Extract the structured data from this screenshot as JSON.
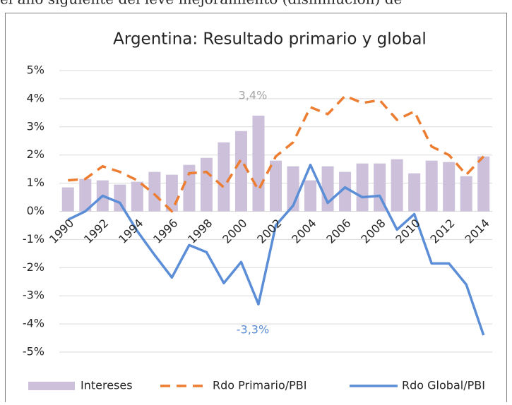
{
  "caption_above": "el año siguiente del leve mejoramiento (disminución) de",
  "chart_data": {
    "type": "bar_line",
    "title": "Argentina: Resultado primario y global",
    "categories": [
      "1990",
      null,
      "1992",
      null,
      "1994",
      null,
      "1996",
      null,
      "1998",
      null,
      "2000",
      null,
      "2002",
      null,
      "2004",
      null,
      "2006",
      null,
      "2008",
      null,
      "2010",
      null,
      "2012",
      null,
      "2014"
    ],
    "series": [
      {
        "name": "Intereses",
        "kind": "bar",
        "color": "#ccc0da",
        "values": [
          0.85,
          1.15,
          1.1,
          0.95,
          1.05,
          1.4,
          1.3,
          1.65,
          1.9,
          2.45,
          2.85,
          3.4,
          1.8,
          1.6,
          1.1,
          1.6,
          1.4,
          1.7,
          1.7,
          1.85,
          1.35,
          1.8,
          1.75,
          1.25,
          1.95
        ],
        "value_labels": [
          null,
          null,
          null,
          null,
          null,
          null,
          null,
          null,
          null,
          null,
          null,
          "3,4%",
          null,
          null,
          null,
          null,
          null,
          null,
          null,
          null,
          null,
          null,
          null,
          null,
          null
        ],
        "label_color": "#a6a6a6"
      },
      {
        "name": "Rdo Primario/PBI",
        "kind": "dashed-line",
        "color": "#ed7d31",
        "values": [
          1.1,
          1.15,
          1.6,
          1.4,
          1.1,
          0.6,
          0.0,
          1.35,
          1.4,
          0.85,
          1.85,
          0.75,
          1.95,
          2.45,
          3.7,
          3.45,
          4.1,
          3.85,
          3.95,
          3.25,
          3.55,
          2.3,
          2.0,
          1.3,
          1.95
        ]
      },
      {
        "name": "Rdo Global/PBI",
        "kind": "line",
        "color": "#5b8ed6",
        "values": [
          -0.3,
          0.0,
          0.55,
          0.3,
          -0.7,
          -1.55,
          -2.35,
          -1.2,
          -1.45,
          -2.55,
          -1.8,
          -3.3,
          -0.5,
          0.2,
          1.65,
          0.3,
          0.85,
          0.5,
          0.55,
          -0.65,
          -0.1,
          -1.85,
          -1.85,
          -2.6,
          -4.4
        ],
        "value_labels": [
          null,
          null,
          null,
          null,
          null,
          null,
          null,
          null,
          null,
          null,
          null,
          "-3,3%",
          null,
          null,
          null,
          null,
          null,
          null,
          null,
          null,
          null,
          null,
          null,
          null,
          null
        ],
        "label_color": "#5b8ed6"
      }
    ],
    "ylim": [
      -5,
      5
    ],
    "yticks": [
      {
        "value": -5,
        "label": "-5%"
      },
      {
        "value": -4,
        "label": "-4%"
      },
      {
        "value": -3,
        "label": "-3%"
      },
      {
        "value": -2,
        "label": "-2%"
      },
      {
        "value": -1,
        "label": "-1%"
      },
      {
        "value": 0,
        "label": "0%"
      },
      {
        "value": 1,
        "label": "1%"
      },
      {
        "value": 2,
        "label": "2%"
      },
      {
        "value": 3,
        "label": "3%"
      },
      {
        "value": 4,
        "label": "4%"
      },
      {
        "value": 5,
        "label": "5%"
      }
    ],
    "grid": true,
    "legend": "bottom"
  }
}
